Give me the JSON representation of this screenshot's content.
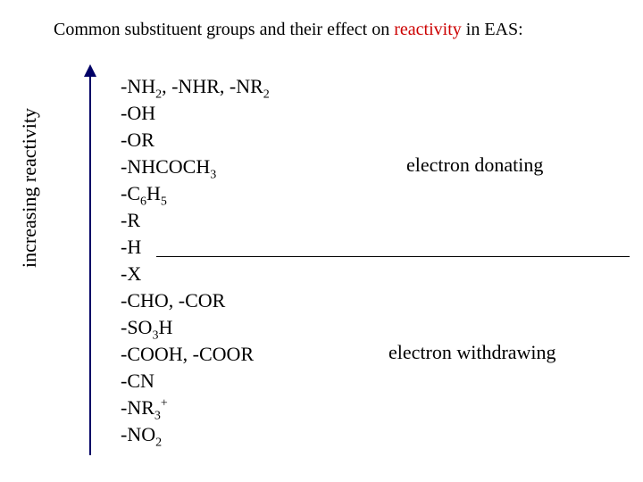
{
  "title_prefix": "Common substituent groups and their effect on ",
  "title_highlight": "reactivity",
  "title_suffix": " in EAS:",
  "highlight_color": "#cc0000",
  "axis_label": "increasing reactivity",
  "arrow_color": "#000066",
  "label_donating": "electron donating",
  "label_withdrawing": "electron withdrawing",
  "groups": {
    "g0": "-NH",
    "g0s": "2",
    "g0b": ", -NHR, -NR",
    "g0s2": "2",
    "g1": "-OH",
    "g2": "-OR",
    "g3": "-NHCOCH",
    "g3s": "3",
    "g4": "-C",
    "g4s": "6",
    "g4b": "H",
    "g4s2": "5",
    "g5": "-R",
    "g6": "-H",
    "g7": "-X",
    "g8": "-CHO, -COR",
    "g9": "-SO",
    "g9s": "3",
    "g9b": "H",
    "g10": "-COOH, -COOR",
    "g11": "-CN",
    "g12": "-NR",
    "g12s": "3",
    "g12sup": "+",
    "g13": "-NO",
    "g13s": "2"
  },
  "font_family": "Times New Roman",
  "font_size_title": 20,
  "font_size_body": 22,
  "background_color": "#ffffff"
}
